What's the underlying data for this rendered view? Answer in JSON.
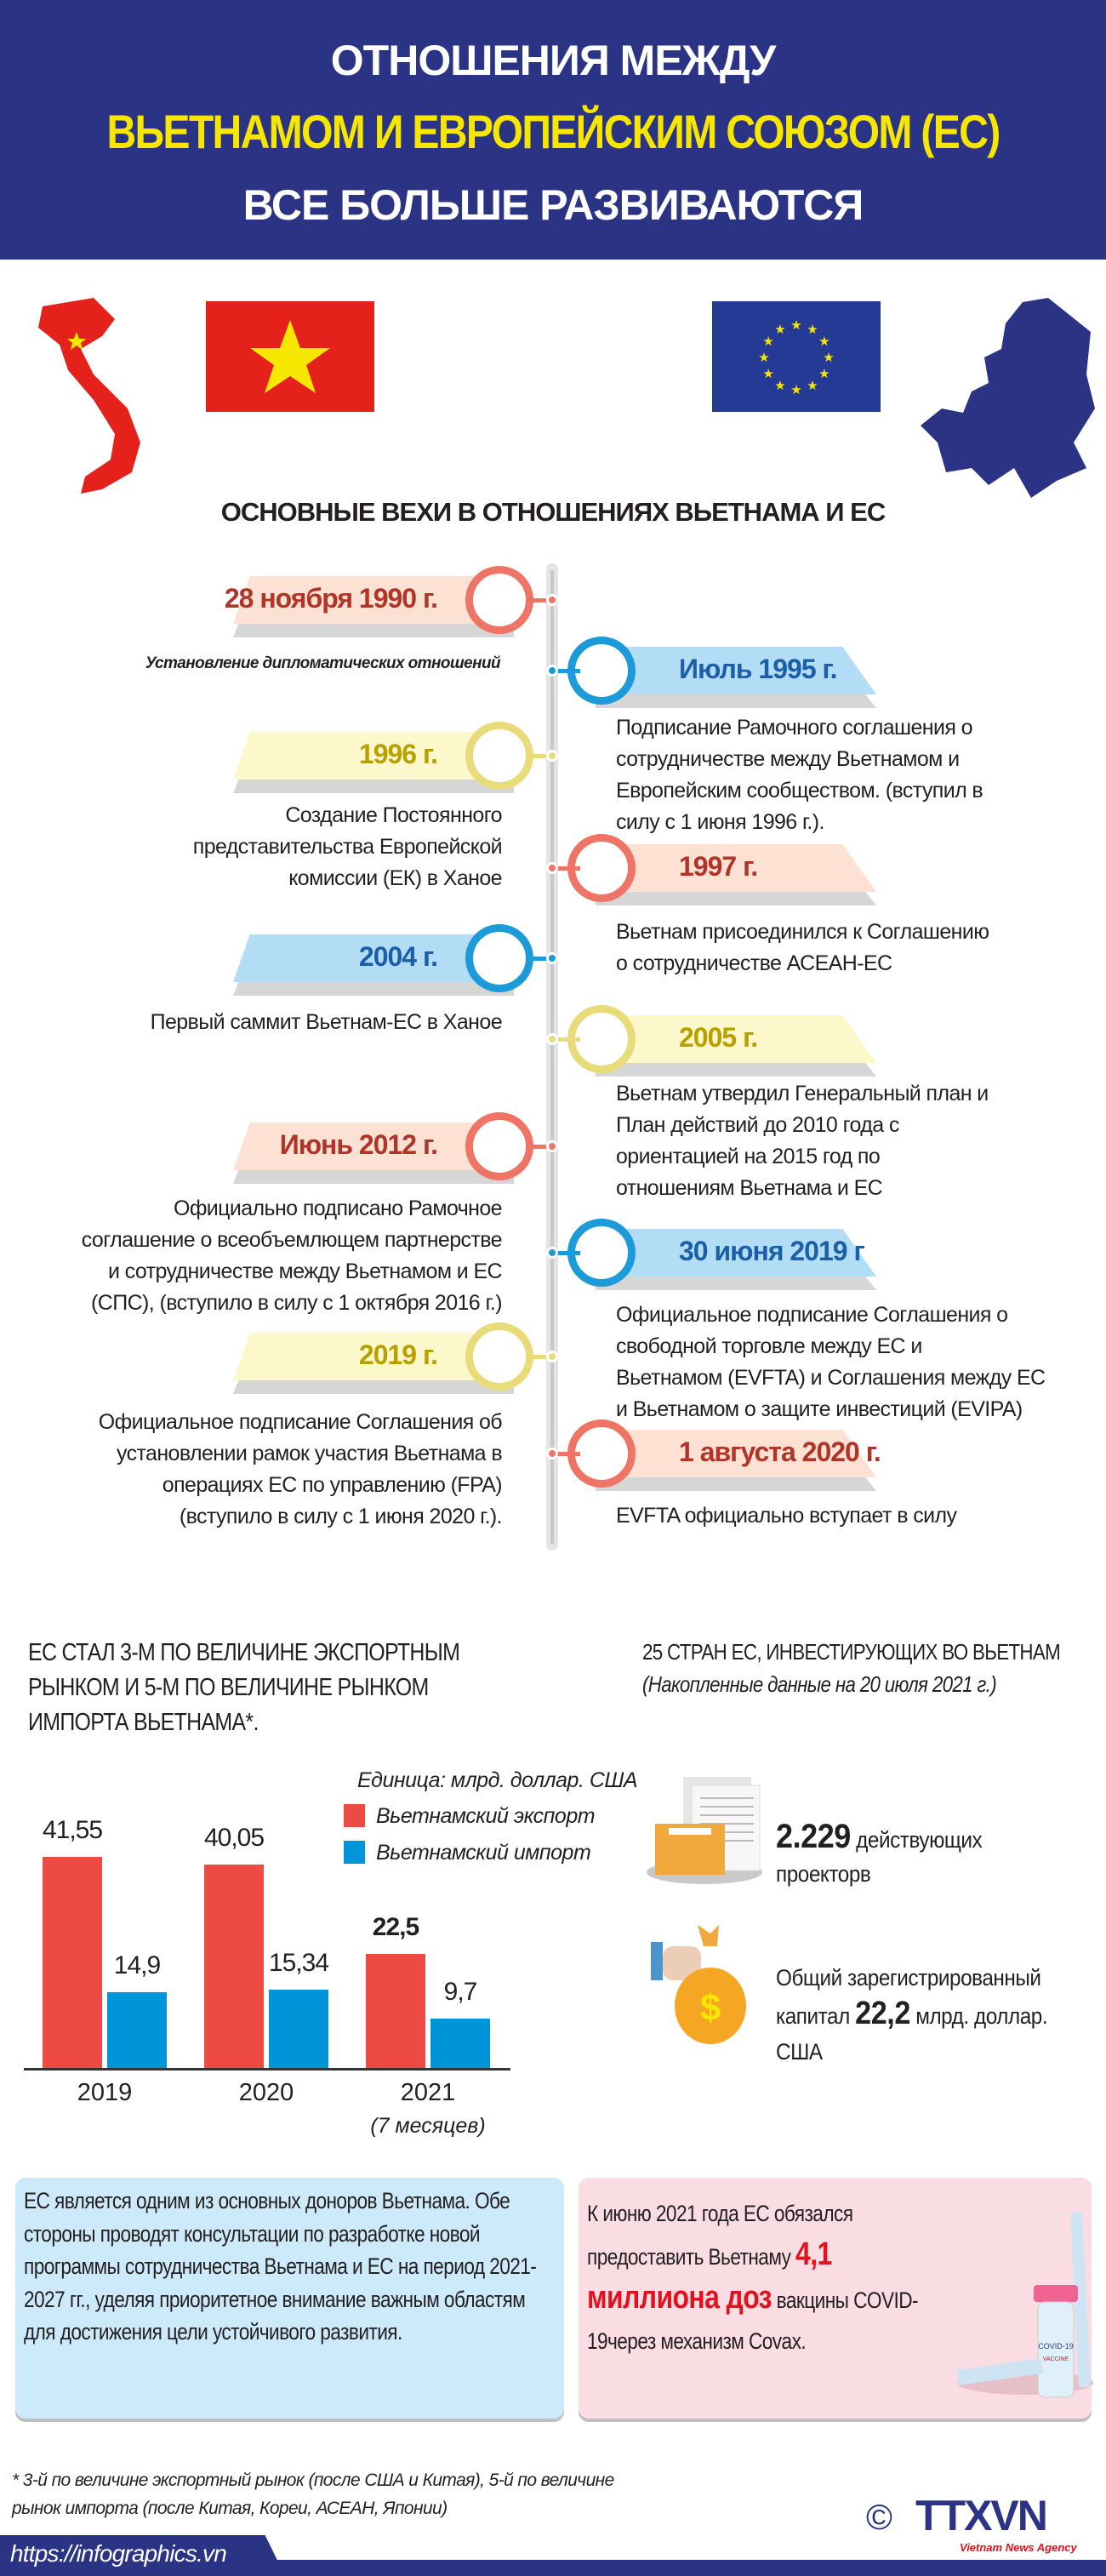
{
  "header": {
    "line1": "ОТНОШЕНИЯ МЕЖДУ",
    "line2": "ВЬЕТНАМОМ И ЕВРОПЕЙСКИМ СОЮЗОМ (ЕС)",
    "line3": "ВСЕ БОЛЬШЕ РАЗВИВАЮТСЯ"
  },
  "colors": {
    "navy": "#2b3384",
    "yellow": "#f7e600",
    "export": "#ee4a44",
    "import": "#0095d9"
  },
  "timeline": {
    "title": "ОСНОВНЫЕ ВЕХИ В ОТНОШЕНИЯХ ВЬЕТНАМА И ЕС",
    "events": [
      {
        "date": "28 ноября 1990 г.",
        "desc": "Установление дипломатических отношений",
        "side": "left",
        "theme": "red"
      },
      {
        "date": "Июль 1995 г.",
        "desc": "Подписание Рамочного соглашения о\nсотрудничестве между Вьетнамом и\nЕвропейским сообществом. (вступил в\nсилу с 1 июня 1996 г.).",
        "side": "right",
        "theme": "blue"
      },
      {
        "date": "1996 г.",
        "desc": "Создание Постоянного\nпредставительства Европейской\nкомиссии (ЕК) в Ханое",
        "side": "left",
        "theme": "yellow"
      },
      {
        "date": "1997 г.",
        "desc": "Вьетнам присоединился к Соглашению\nо сотрудничестве АСЕАН-ЕС",
        "side": "right",
        "theme": "red"
      },
      {
        "date": "2004 г.",
        "desc": "Первый саммит Вьетнам-ЕС в Ханое",
        "side": "left",
        "theme": "blue"
      },
      {
        "date": "2005 г.",
        "desc": "Вьетнам утвердил Генеральный план и\nПлан действий до 2010 года с\nориентацией на 2015 год по\nотношениям Вьетнама и ЕС",
        "side": "right",
        "theme": "yellow"
      },
      {
        "date": "Июнь 2012 г.",
        "desc": "Официально подписано Рамочное\nсоглашение о всеобъемлющем партнерстве\nи сотрудничестве между Вьетнамом и ЕС\n(СПС), (вступило в силу с 1 октября 2016 г.)",
        "side": "left",
        "theme": "red"
      },
      {
        "date": "30 июня 2019 г",
        "desc": "Официальное подписание Соглашения о\nсвободной торговле между ЕС и\nВьетнамом (EVFTA) и Соглашения между ЕС\nи Вьетнамом о защите инвестиций (EVIPA)",
        "side": "right",
        "theme": "blue"
      },
      {
        "date": "2019 г.",
        "desc": "Официальное подписание Соглашения об\nустановлении рамок участия Вьетнама в\nоперациях ЕС по управлению (FPA)\n(вступило в силу с 1 июня 2020 г.).",
        "side": "left",
        "theme": "yellow"
      },
      {
        "date": "1 августа 2020 г.",
        "desc": "EVFTA официально вступает в силу",
        "side": "right",
        "theme": "red"
      }
    ]
  },
  "chart_data": {
    "type": "bar",
    "title": "ЕС СТАЛ 3-М ПО ВЕЛИЧИНЕ ЭКСПОРТНЫМ РЫНКОМ И 5-М ПО ВЕЛИЧИНЕ РЫНКОМ ИМПОРТА ВЬЕТНАМА*.",
    "title_lines": [
      "ЕС СТАЛ 3-М ПО ВЕЛИЧИНЕ ЭКСПОРТНЫМ",
      "РЫНКОМ И 5-М ПО ВЕЛИЧИНЕ РЫНКОМ",
      "ИМПОРТА ВЬЕТНАМА*."
    ],
    "unit": "Единица: млрд. доллар. США",
    "categories": [
      "2019",
      "2020",
      "2021"
    ],
    "category_notes": [
      "",
      "",
      "(7 месяцев)"
    ],
    "series": [
      {
        "name": "Вьетнамский экспорт",
        "values": [
          41.55,
          40.05,
          22.5
        ],
        "labels": [
          "41,55",
          "40,05",
          "22,5"
        ],
        "color": "#ee4a44"
      },
      {
        "name": "Вьетнамский импорт",
        "values": [
          14.9,
          15.34,
          9.7
        ],
        "labels": [
          "14,9",
          "15,34",
          "9,7"
        ],
        "color": "#0095d9"
      }
    ],
    "ylim": [
      0,
      45
    ],
    "grid": false,
    "legend": "top-right"
  },
  "investment": {
    "title": "25 СТРАН ЕС, ИНВЕСТИРУЮЩИХ ВО ВЬЕТНАМ",
    "subtitle": "(Накопленные данные на 20 июля 2021 г.)",
    "projects_value": "2.229",
    "projects_text": " действующих",
    "projects_text2": "проекторв",
    "capital_text1": "Общий зарегистрированный",
    "capital_text2": "капитал ",
    "capital_value": "22,2",
    "capital_text3": " млрд. доллар.",
    "capital_text4": "США"
  },
  "boxes": {
    "left": "ЕС является одним из основных доноров Вьетнама. Обе стороны проводят консультации по разработке новой программы сотрудничества Вьетнама и ЕС на период 2021-2027 гг., уделяя приоритетное внимание важным областям для достижения цели устойчивого развития.",
    "right_a": "К июню 2021 года ЕС обязался предоставить Вьетнаму ",
    "right_hl": "4,1 миллиона доз",
    "right_b": " вакцины COVID-19через механизм Covax.",
    "vial_label": "COVID-19",
    "vial_sub": "VACCINE"
  },
  "footnote": [
    "* 3-й по величине экспортный рынок (после США и Китая), 5-й по величине",
    "рынок импорта (после Китая, Кореи, АСЕАН, Японии)"
  ],
  "footer": {
    "url": "https://infographics.vn",
    "logo": "TTXVN",
    "logo_sub": "Vietnam News Agency",
    "copyright": "©"
  }
}
